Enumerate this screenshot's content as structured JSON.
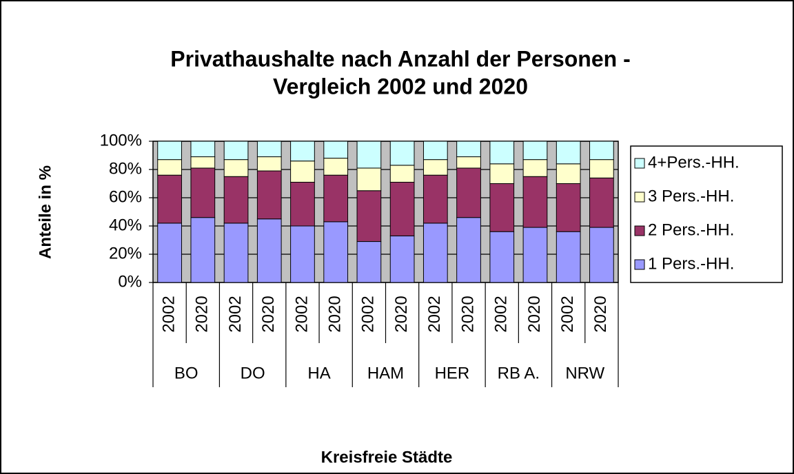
{
  "chart_data": {
    "type": "stacked_bar_100",
    "title": [
      "Privathaushalte nach Anzahl der Personen -",
      "Vergleich 2002 und 2020"
    ],
    "x_label": "Kreisfreie Städte",
    "y_label": "Anteile in %",
    "categories": [
      "2002",
      "2020",
      "2002",
      "2020",
      "2002",
      "2020",
      "2002",
      "2020",
      "2002",
      "2020",
      "2002",
      "2020",
      "2002",
      "2020"
    ],
    "groups": [
      "BO",
      "DO",
      "HA",
      "HAM",
      "HER",
      "RB A.",
      "NRW"
    ],
    "series": [
      {
        "name": "1 Pers.-HH.",
        "color": "#9999ff",
        "values": [
          42,
          46,
          42,
          45,
          40,
          43,
          29,
          33,
          42,
          46,
          36,
          39,
          36,
          39
        ]
      },
      {
        "name": "2 Pers.-HH.",
        "color": "#993366",
        "values": [
          34,
          35,
          33,
          34,
          31,
          33,
          36,
          38,
          34,
          35,
          34,
          36,
          34,
          35
        ]
      },
      {
        "name": "3 Pers.-HH.",
        "color": "#ffffcc",
        "values": [
          11,
          8,
          12,
          10,
          15,
          12,
          16,
          12,
          11,
          8,
          14,
          12,
          14,
          13
        ]
      },
      {
        "name": "4+Pers.-HH.",
        "color": "#ccffff",
        "values": [
          13,
          11,
          13,
          11,
          14,
          12,
          19,
          17,
          13,
          11,
          16,
          13,
          16,
          13
        ]
      }
    ],
    "ylim": [
      0,
      100
    ],
    "yticks": [
      {
        "value": 0,
        "label": "0%"
      },
      {
        "value": 20,
        "label": "20%"
      },
      {
        "value": 40,
        "label": "40%"
      },
      {
        "value": 60,
        "label": "60%"
      },
      {
        "value": 80,
        "label": "80%"
      },
      {
        "value": 100,
        "label": "100%"
      }
    ],
    "grid": true,
    "legend": "right"
  }
}
